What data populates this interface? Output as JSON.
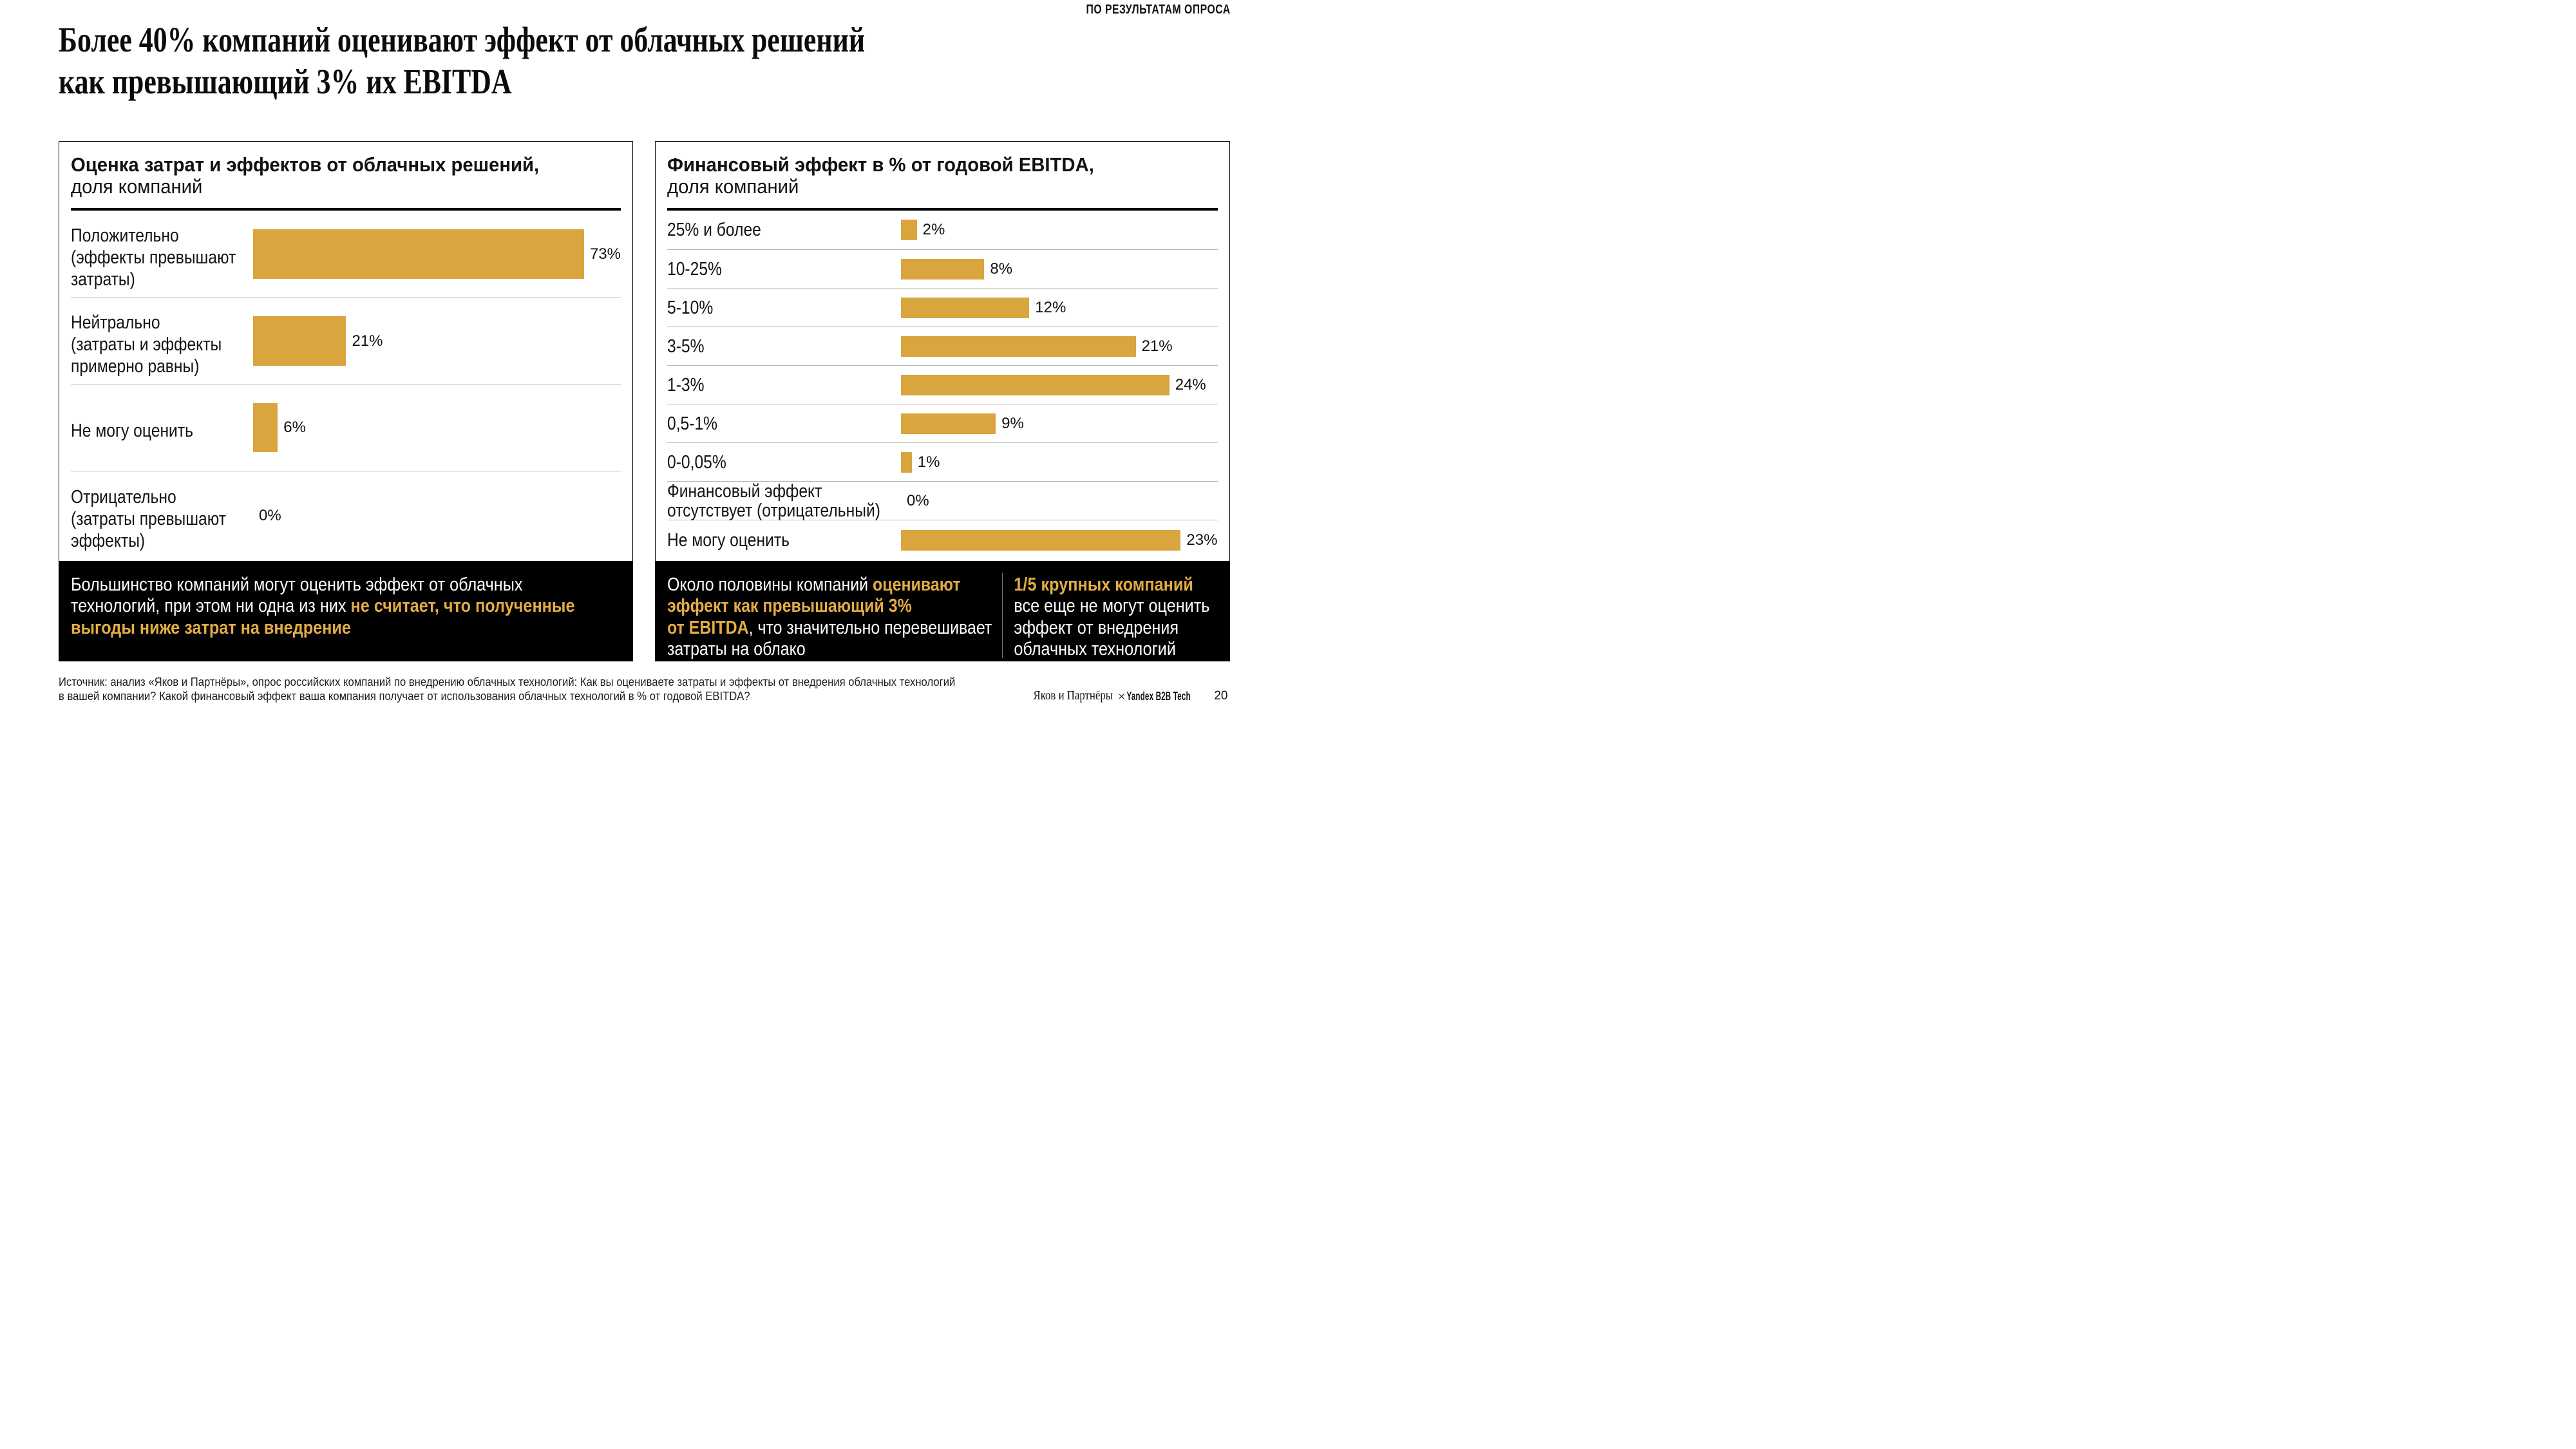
{
  "page": {
    "tag": "ПО РЕЗУЛЬТАТАМ ОПРОСА",
    "title": "Более 40% компаний оценивают эффект от облачных решений\nкак превышающий 3% их EBITDA",
    "colors": {
      "gold_bar": "#D9A53F",
      "gold_text": "#E2AC45",
      "background": "#FFFFFF",
      "insight_background": "#000000"
    }
  },
  "chart_data": [
    {
      "type": "bar",
      "orientation": "horizontal",
      "title": "Оценка затрат и эффектов от облачных решений,",
      "subtitle": "доля компаний",
      "categories": [
        "Положительно\n(эффекты превышают\nзатраты)",
        "Нейтрально\n(затраты и эффекты\nпримерно равны)",
        "Не могу оценить",
        "Отрицательно\n(затраты превышают\nэффекты)"
      ],
      "values": [
        73,
        21,
        6,
        0
      ],
      "value_labels": [
        "73%",
        "21%",
        "6%",
        "0%"
      ],
      "unit": "%",
      "bar_width_pct_of_area": [
        90.5,
        25.3,
        6.7,
        0
      ],
      "grid": "horizontal-separators"
    },
    {
      "type": "bar",
      "orientation": "horizontal",
      "title": "Финансовый эффект в % от годовой EBITDA,",
      "subtitle": "доля компаний",
      "categories": [
        "25% и более",
        "10-25%",
        "5-10%",
        "3-5%",
        "1-3%",
        "0,5-1%",
        "0-0,05%",
        "Финансовый эффект\nотсутствует (отрицательный)",
        "Не могу оценить"
      ],
      "values": [
        2,
        8,
        12,
        21,
        24,
        9,
        1,
        0,
        23
      ],
      "value_labels": [
        "2%",
        "8%",
        "12%",
        "21%",
        "24%",
        "9%",
        "1%",
        "0%",
        "23%"
      ],
      "unit": "%",
      "bar_width_pct_of_area": [
        5.0,
        26.3,
        40.5,
        74.1,
        84.7,
        29.9,
        3.4,
        0,
        88.3
      ],
      "grid": "horizontal-separators"
    }
  ],
  "insights": [
    {
      "columns": [
        {
          "segments": [
            {
              "text": "Большинство компаний могут оценить эффект от облачных\nтехнологий, при этом ни одна из них ",
              "gold": false
            },
            {
              "text": "не считает, что полученные\nвыгоды ниже затрат на внедрение",
              "gold": true
            }
          ]
        }
      ]
    },
    {
      "columns": [
        {
          "segments": [
            {
              "text": "Около половины компаний ",
              "gold": false
            },
            {
              "text": "оценивают\nэффект как превышающий 3%\nот EBITDA",
              "gold": true
            },
            {
              "text": ", что значительно перевешивает\nзатраты на облако",
              "gold": false
            }
          ]
        },
        {
          "segments": [
            {
              "text": "1/5 крупных компаний",
              "gold": true
            },
            {
              "text": "\nвсе еще не могут оценить\nэффект от внедрения\nоблачных технологий",
              "gold": false
            }
          ]
        }
      ]
    }
  ],
  "footer": {
    "source": "Источник: анализ «Яков и Партнёры», опрос российских компаний по внедрению облачных технологий: Как вы оцениваете затраты и эффекты от внедрения облачных технологий\nв вашей компании? Какой финансовый эффект ваша компания получает от использования облачных технологий в % от годовой EBITDA?",
    "brand_left": "Яков и Партнёры",
    "brand_separator": "×",
    "brand_right": "Yandex B2B Tech",
    "page_number": "20"
  }
}
